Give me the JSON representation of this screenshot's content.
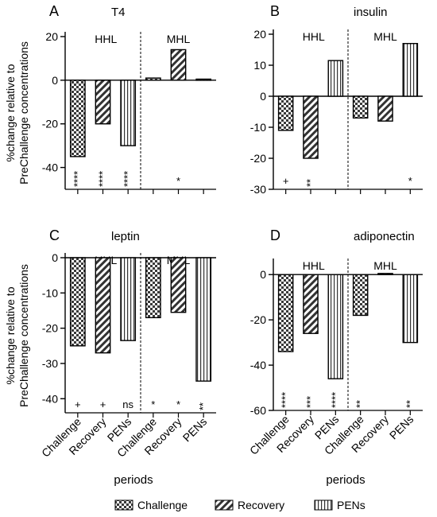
{
  "legend": [
    {
      "label": "Challenge",
      "pattern": "checker"
    },
    {
      "label": "Recovery",
      "pattern": "diag"
    },
    {
      "label": "PENs",
      "pattern": "vert"
    }
  ],
  "x_label": "periods",
  "y_label_lines": [
    "%change relative to",
    "PreChallenge concentrations"
  ],
  "chart_data": [
    {
      "type": "bar",
      "panel": "A",
      "title": "T4",
      "groups": [
        "HHL",
        "MHL"
      ],
      "categories": [
        "Challenge",
        "Recovery",
        "PENs"
      ],
      "series": [
        {
          "name": "HHL",
          "values": [
            -35,
            -20,
            -30
          ],
          "significance": [
            "****",
            "****",
            "****"
          ]
        },
        {
          "name": "MHL",
          "values": [
            1,
            14,
            0.5
          ],
          "significance": [
            "",
            "*",
            ""
          ]
        }
      ],
      "ylim": [
        -50,
        20
      ],
      "yticks": [
        -40,
        -20,
        0,
        20
      ],
      "ylabel": "%change relative to PreChallenge concentrations",
      "xlabel": ""
    },
    {
      "type": "bar",
      "panel": "B",
      "title": "insulin",
      "groups": [
        "HHL",
        "MHL"
      ],
      "categories": [
        "Challenge",
        "Recovery",
        "PENs"
      ],
      "series": [
        {
          "name": "HHL",
          "values": [
            -11,
            -20,
            11.5
          ],
          "significance": [
            "+",
            "**",
            ""
          ]
        },
        {
          "name": "MHL",
          "values": [
            -7,
            -8,
            17
          ],
          "significance": [
            "",
            "",
            "*"
          ]
        }
      ],
      "ylim": [
        -30,
        20
      ],
      "yticks": [
        -30,
        -20,
        -10,
        0,
        10,
        20
      ],
      "ylabel": "",
      "xlabel": ""
    },
    {
      "type": "bar",
      "panel": "C",
      "title": "leptin",
      "groups": [
        "HHL",
        "MHL"
      ],
      "categories": [
        "Challenge",
        "Recovery",
        "PENs"
      ],
      "series": [
        {
          "name": "HHL",
          "values": [
            -25,
            -27,
            -23.5
          ],
          "significance": [
            "+",
            "+",
            "ns"
          ]
        },
        {
          "name": "MHL",
          "values": [
            -17,
            -15.5,
            -35
          ],
          "significance": [
            "*",
            "*",
            "**"
          ]
        }
      ],
      "ylim": [
        -44,
        0
      ],
      "yticks": [
        -40,
        -30,
        -20,
        -10,
        0
      ],
      "ylabel": "%change relative to PreChallenge concentrations",
      "xlabel": "periods"
    },
    {
      "type": "bar",
      "panel": "D",
      "title": "adiponectin",
      "groups": [
        "HHL",
        "MHL"
      ],
      "categories": [
        "Challenge",
        "Recovery",
        "PENs"
      ],
      "series": [
        {
          "name": "HHL",
          "values": [
            -34,
            -26,
            -46
          ],
          "significance": [
            "****",
            "***",
            "****"
          ]
        },
        {
          "name": "MHL",
          "values": [
            -18,
            0.5,
            -30
          ],
          "significance": [
            "**",
            "",
            "**"
          ]
        }
      ],
      "ylim": [
        -60,
        5
      ],
      "yticks": [
        -60,
        -40,
        -20,
        0
      ],
      "ylabel": "",
      "xlabel": "periods"
    }
  ]
}
